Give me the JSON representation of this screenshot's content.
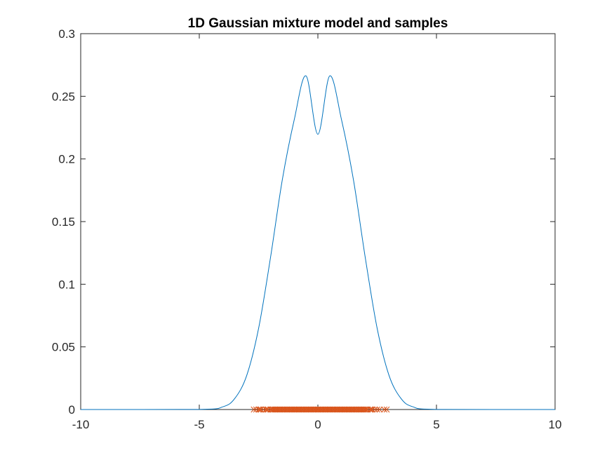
{
  "chart_data": {
    "type": "line",
    "title": "1D Gaussian mixture model and samples",
    "xlabel": "",
    "ylabel": "",
    "xlim": [
      -10,
      10
    ],
    "ylim": [
      0,
      0.3
    ],
    "x_ticks": [
      "-10",
      "-5",
      "0",
      "5",
      "10"
    ],
    "y_ticks": [
      "0",
      "0.05",
      "0.1",
      "0.15",
      "0.2",
      "0.25",
      "0.3"
    ],
    "grid": false,
    "legend": "none",
    "series": [
      {
        "kind": "line",
        "color": "#0072BD",
        "model": "equal-weight mixture of N(-1, 1) and N(1, 1)",
        "x": [
          -10,
          -5,
          -4,
          -3.5,
          -3,
          -2.5,
          -2,
          -1.5,
          -1,
          -0.5,
          0,
          0.5,
          1,
          1.5,
          2,
          2.5,
          3,
          3.5,
          4,
          5,
          10
        ],
        "y": [
          0,
          0.0001,
          0.0022,
          0.0089,
          0.0272,
          0.0647,
          0.121,
          0.1833,
          0.231,
          0.2663,
          0.2197,
          0.2663,
          0.231,
          0.1833,
          0.121,
          0.0647,
          0.0272,
          0.0089,
          0.0022,
          0.0001,
          0
        ]
      },
      {
        "kind": "scatter",
        "marker": "x",
        "color": "#D95319",
        "y": 0,
        "x": [
          -2.7,
          -2.6,
          -2.5,
          -2.45,
          -2.4,
          -2.3,
          -2.2,
          -2.15,
          -2.1,
          -2.0,
          -1.95,
          -1.9,
          -1.85,
          -1.8,
          -1.75,
          -1.7,
          -1.65,
          -1.6,
          -1.55,
          -1.5,
          -1.45,
          -1.4,
          -1.35,
          -1.3,
          -1.25,
          -1.2,
          -1.15,
          -1.1,
          -1.05,
          -1.0,
          -0.95,
          -0.9,
          -0.85,
          -0.8,
          -0.75,
          -0.7,
          -0.65,
          -0.6,
          -0.55,
          -0.5,
          -0.45,
          -0.4,
          -0.35,
          -0.3,
          -0.25,
          -0.2,
          -0.15,
          -0.1,
          -0.05,
          0.0,
          0.05,
          0.1,
          0.15,
          0.2,
          0.25,
          0.3,
          0.35,
          0.4,
          0.45,
          0.5,
          0.55,
          0.6,
          0.65,
          0.7,
          0.75,
          0.8,
          0.85,
          0.9,
          0.95,
          1.0,
          1.05,
          1.1,
          1.15,
          1.2,
          1.25,
          1.3,
          1.35,
          1.4,
          1.45,
          1.5,
          1.55,
          1.6,
          1.65,
          1.7,
          1.75,
          1.8,
          1.85,
          1.9,
          1.95,
          2.0,
          2.05,
          2.1,
          2.2,
          2.25,
          2.3,
          2.4,
          2.5,
          2.6,
          2.8,
          2.9
        ]
      }
    ]
  }
}
